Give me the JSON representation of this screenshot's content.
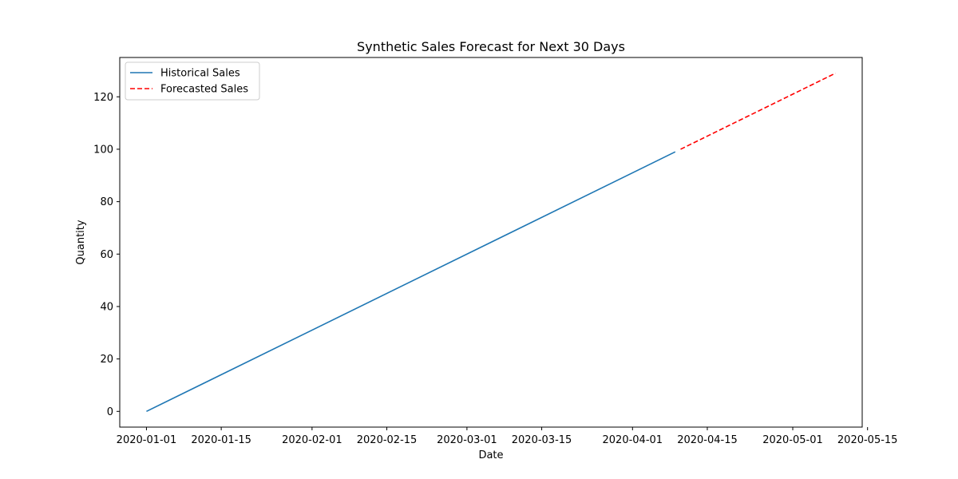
{
  "chart_data": {
    "type": "line",
    "title": "Synthetic Sales Forecast for Next 30 Days",
    "xlabel": "Date",
    "ylabel": "Quantity",
    "x_axis": {
      "type": "date",
      "range": [
        "2019-12-27",
        "2020-05-14"
      ],
      "ticks": [
        "2020-01-01",
        "2020-01-15",
        "2020-02-01",
        "2020-02-15",
        "2020-03-01",
        "2020-03-15",
        "2020-04-01",
        "2020-04-15",
        "2020-05-01",
        "2020-05-15"
      ]
    },
    "y_axis": {
      "range": [
        -6,
        135
      ],
      "ticks": [
        0,
        20,
        40,
        60,
        80,
        100,
        120
      ]
    },
    "grid": false,
    "legend_position": "top-left",
    "series": [
      {
        "name": "Historical Sales",
        "style": "solid",
        "color": "#1f77b4",
        "points": [
          {
            "x": "2020-01-01",
            "y": 0
          },
          {
            "x": "2020-04-09",
            "y": 99
          }
        ]
      },
      {
        "name": "Forecasted Sales",
        "style": "dashed",
        "color": "#ff0000",
        "points": [
          {
            "x": "2020-04-10",
            "y": 100
          },
          {
            "x": "2020-05-09",
            "y": 129
          }
        ]
      }
    ]
  }
}
